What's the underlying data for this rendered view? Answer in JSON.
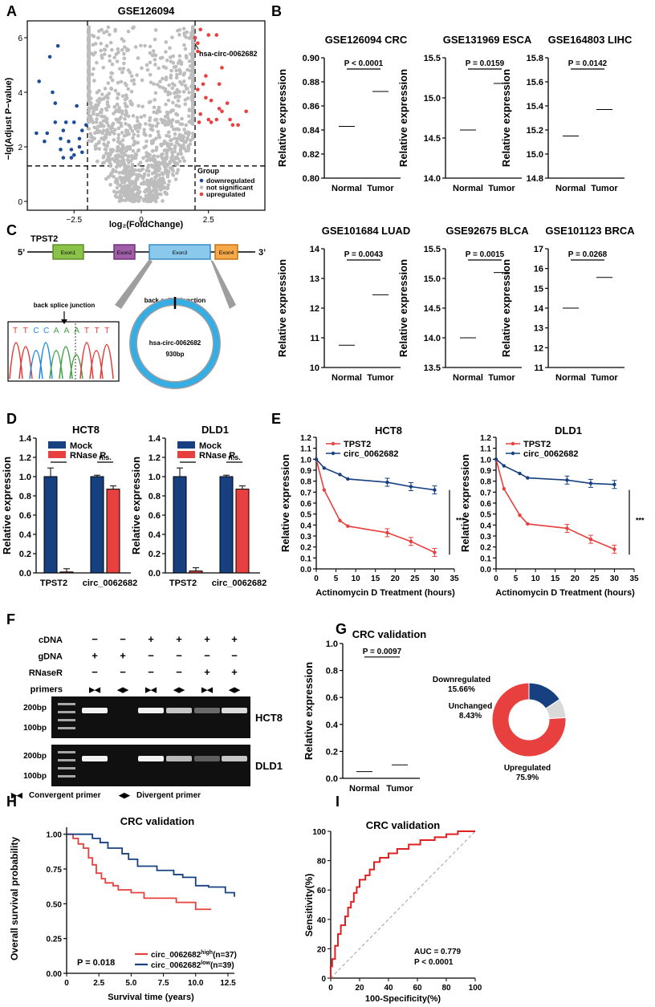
{
  "panel_labels": [
    "A",
    "B",
    "C",
    "D",
    "E",
    "F",
    "G",
    "H",
    "I"
  ],
  "colors": {
    "red": "#e8403e",
    "blue": "#1d4d99",
    "grey": "#bdbdbd",
    "navy": "#16407f",
    "gel_bg": "#101010",
    "ring": "#35aee6"
  },
  "volcano": {
    "title": "GSE126094",
    "xlabel": "log₂(FoldChange)",
    "ylabel": "−lg(Adjust P−value)",
    "xticks": [
      "−2.5",
      "0",
      "2.5"
    ],
    "yticks": [
      "0",
      "2",
      "4",
      "6"
    ],
    "highlight": "hsa-circ-0062682",
    "legend_title": "Group",
    "legend": [
      "downregulated",
      "not significant",
      "upregulated"
    ]
  },
  "violin_b": {
    "ylabel": "Relative expression",
    "xcats": [
      "Normal",
      "Tumor"
    ],
    "plots": [
      {
        "title": "GSE126094 CRC",
        "p": "P < 0.0001",
        "yticks": [
          "0.80",
          "0.82",
          "0.84",
          "0.86",
          "0.88",
          "0.90"
        ],
        "ylim": [
          0.8,
          0.9
        ]
      },
      {
        "title": "GSE131969 ESCA",
        "p": "P = 0.0159",
        "yticks": [
          "14.0",
          "14.5",
          "15.0",
          "15.5"
        ],
        "ylim": [
          14.0,
          15.5
        ]
      },
      {
        "title": "GSE164803 LIHC",
        "p": "P = 0.0142",
        "yticks": [
          "14.8",
          "15.0",
          "15.2",
          "15.4",
          "15.6",
          "15.8"
        ],
        "ylim": [
          14.8,
          15.8
        ]
      },
      {
        "title": "GSE101684 LUAD",
        "p": "P = 0.0043",
        "yticks": [
          "10",
          "11",
          "12",
          "13",
          "14"
        ],
        "ylim": [
          10,
          14
        ]
      },
      {
        "title": "GSE92675 BLCA",
        "p": "P = 0.0015",
        "yticks": [
          "13.5",
          "14.0",
          "14.5",
          "15.0",
          "15.5"
        ],
        "ylim": [
          13.5,
          15.5
        ]
      },
      {
        "title": "GSE101123 BRCA",
        "p": "P = 0.0268",
        "yticks": [
          "11",
          "12",
          "13",
          "14",
          "15",
          "16",
          "17"
        ],
        "ylim": [
          11,
          17
        ]
      }
    ]
  },
  "gene_struct": {
    "gene": "TPST2",
    "five": "5’",
    "three": "3’",
    "exons": [
      "Exon1",
      "Exon2",
      "Exon3",
      "Exon4"
    ],
    "bsj": "back splice junction",
    "seq": [
      "T",
      "T",
      "C",
      "C",
      "A",
      "A",
      "A",
      "T",
      "T",
      "T"
    ],
    "circ_name": "hsa-circ-0062682",
    "circ_len": "930bp"
  },
  "bar_d": {
    "ylabel": "Relative expression",
    "yticks": [
      "0.0",
      "0.2",
      "0.4",
      "0.6",
      "0.8",
      "1.0",
      "1.2",
      "1.4"
    ],
    "legend": [
      "Mock",
      "RNase R"
    ],
    "xlabels": [
      "TPST2",
      "circ_0062682"
    ],
    "sig": [
      "***",
      "n.s."
    ],
    "plots": [
      {
        "title": "HCT8",
        "mock": [
          1.0,
          1.0
        ],
        "rnase": [
          0.01,
          0.87
        ]
      },
      {
        "title": "DLD1",
        "mock": [
          1.0,
          1.0
        ],
        "rnase": [
          0.02,
          0.87
        ]
      }
    ]
  },
  "line_e": {
    "ylabel": "Relative expression",
    "xlabel": "Actinomycin D Treatment (hours)",
    "xticks": [
      "0",
      "5",
      "10",
      "15",
      "20",
      "25",
      "30",
      "35"
    ],
    "yticks": [
      "0.0",
      "0.1",
      "0.2",
      "0.3",
      "0.4",
      "0.5",
      "0.6",
      "0.7",
      "0.8",
      "0.9",
      "1.0",
      "1.1",
      "1.2"
    ],
    "legend": [
      "TPST2",
      "circ_0062682"
    ],
    "sig": "***",
    "x": [
      0,
      2,
      6,
      8,
      18,
      24,
      30
    ],
    "plots": [
      {
        "title": "HCT8",
        "tpst2": [
          1.0,
          0.72,
          0.44,
          0.39,
          0.33,
          0.25,
          0.15
        ],
        "circ": [
          1.0,
          0.92,
          0.86,
          0.82,
          0.79,
          0.75,
          0.72
        ]
      },
      {
        "title": "DLD1",
        "tpst2": [
          1.0,
          0.73,
          0.49,
          0.41,
          0.37,
          0.27,
          0.18
        ],
        "circ": [
          1.0,
          0.94,
          0.87,
          0.83,
          0.81,
          0.78,
          0.77
        ]
      }
    ]
  },
  "gel_f": {
    "rows": [
      {
        "name": "cDNA",
        "vals": [
          "−",
          "−",
          "+",
          "+",
          "+",
          "+"
        ]
      },
      {
        "name": "gDNA",
        "vals": [
          "+",
          "+",
          "−",
          "−",
          "−",
          "−"
        ]
      },
      {
        "name": "RNaseR",
        "vals": [
          "−",
          "−",
          "−",
          "−",
          "+",
          "+"
        ]
      },
      {
        "name": "primers",
        "vals": [
          "▶◀",
          "◀▶",
          "▶◀",
          "◀▶",
          "▶◀",
          "◀▶"
        ]
      }
    ],
    "markers": [
      "200bp",
      "100bp"
    ],
    "cells": [
      "HCT8",
      "DLD1"
    ],
    "key": [
      {
        "sym": "▶◀",
        "label": "Convergent primer"
      },
      {
        "sym": "◀▶",
        "label": "Divergent primer"
      }
    ]
  },
  "panel_g": {
    "title": "CRC validation",
    "ylabel": "Relative expression",
    "yticks": [
      "0.0",
      "0.2",
      "0.4",
      "0.6",
      "0.8",
      "1.0"
    ],
    "xcats": [
      "Normal",
      "Tumor"
    ],
    "p": "P = 0.0097",
    "donut": [
      {
        "label": "Downregulated",
        "pct": "15.66%",
        "value": 15.66
      },
      {
        "label": "Unchanged",
        "pct": "8.43%",
        "value": 8.43
      },
      {
        "label": "Upregulated",
        "pct": "75.9%",
        "value": 75.9
      }
    ]
  },
  "km_h": {
    "title": "CRC validation",
    "ylabel": "Overall survival probability",
    "xlabel": "Survival time (years)",
    "xticks": [
      "0",
      "2.5",
      "5.0",
      "7.5",
      "10.0",
      "12.5"
    ],
    "yticks": [
      "0.00",
      "0.25",
      "0.50",
      "0.75",
      "1.00"
    ],
    "p": "P = 0.018",
    "legend": [
      {
        "base": "circ_0062682",
        "sup": "high",
        "n": "(n=37)"
      },
      {
        "base": "circ_0062682",
        "sup": "low",
        "n": "(n=39)"
      }
    ]
  },
  "roc_i": {
    "title": "CRC validation",
    "ylabel": "Sensitivity(%)",
    "xlabel": "100-Specificity(%)",
    "ticks": [
      "0",
      "20",
      "40",
      "60",
      "80",
      "100"
    ],
    "auc": "AUC = 0.779",
    "p": "P < 0.0001"
  }
}
